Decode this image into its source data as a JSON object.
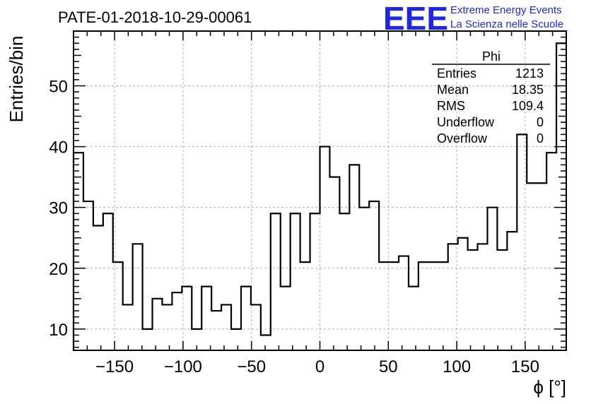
{
  "chart_data": {
    "type": "histogram",
    "title": "PATE-01-2018-10-29-00061",
    "xlabel": "ϕ [°]",
    "ylabel": "Entries/bin",
    "xlim": [
      -180,
      180
    ],
    "ylim": [
      6.5,
      59
    ],
    "xticks": [
      -150,
      -100,
      -50,
      0,
      50,
      100,
      150
    ],
    "xtick_labels": [
      "−150",
      "−100",
      "−50",
      "0",
      "50",
      "100",
      "150"
    ],
    "yticks": [
      10,
      20,
      30,
      40,
      50
    ],
    "ytick_labels": [
      "10",
      "20",
      "30",
      "40",
      "50"
    ],
    "grid": true,
    "bin_edges": [
      -180,
      -172.8,
      -165.6,
      -158.4,
      -151.2,
      -144,
      -136.8,
      -129.6,
      -122.4,
      -115.2,
      -108,
      -100.8,
      -93.6,
      -86.4,
      -79.2,
      -72,
      -64.8,
      -57.6,
      -50.4,
      -43.2,
      -36,
      -28.8,
      -21.6,
      -14.4,
      -7.2,
      0,
      7.2,
      14.4,
      21.6,
      28.8,
      36,
      43.2,
      50.4,
      57.6,
      64.8,
      72,
      79.2,
      86.4,
      93.6,
      100.8,
      108,
      115.2,
      122.4,
      129.6,
      136.8,
      144,
      151.2,
      158.4,
      165.6,
      172.8,
      180
    ],
    "values": [
      39,
      31,
      27,
      29,
      21,
      14,
      24,
      10,
      15,
      14,
      16,
      17,
      10,
      17,
      13,
      14,
      10,
      17,
      14,
      9,
      29,
      17,
      29,
      21,
      29,
      40,
      35,
      29,
      37,
      30,
      31,
      21,
      21,
      22,
      17,
      21,
      21,
      21,
      24,
      25,
      23,
      24,
      30,
      23,
      26,
      42,
      34,
      34,
      39,
      57
    ],
    "line_color": "#000000"
  },
  "stats_box": {
    "title": "Phi",
    "rows": [
      {
        "label": "Entries",
        "value": "1213"
      },
      {
        "label": "Mean",
        "value": "18.35"
      },
      {
        "label": "RMS",
        "value": "109.4"
      },
      {
        "label": "Underflow",
        "value": "0"
      },
      {
        "label": "Overflow",
        "value": "0"
      }
    ]
  },
  "logo": {
    "mark": "EEE",
    "line1": "Extreme Energy Events",
    "line2": "La Scienza nelle Scuole",
    "color": "#1f26e8"
  }
}
